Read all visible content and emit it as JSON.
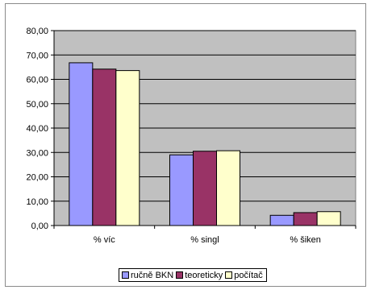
{
  "chart_data": {
    "type": "bar",
    "categories": [
      "% víc",
      "% singl",
      "% šiken"
    ],
    "series": [
      {
        "name": "ručně BKN",
        "color": "#9999ff",
        "values": [
          66.8,
          29.0,
          4.2
        ]
      },
      {
        "name": "teoreticky",
        "color": "#993366",
        "values": [
          64.2,
          30.5,
          5.3
        ]
      },
      {
        "name": "počítač",
        "color": "#ffffcc",
        "values": [
          63.6,
          30.7,
          5.7
        ]
      }
    ],
    "yticks": [
      "0,00",
      "10,00",
      "20,00",
      "30,00",
      "40,00",
      "50,00",
      "60,00",
      "70,00",
      "80,00"
    ],
    "ylim": [
      0,
      80
    ],
    "grid": true,
    "plot_background": "#c0c0c0",
    "legend_position": "bottom",
    "title": "",
    "xlabel": "",
    "ylabel": ""
  }
}
